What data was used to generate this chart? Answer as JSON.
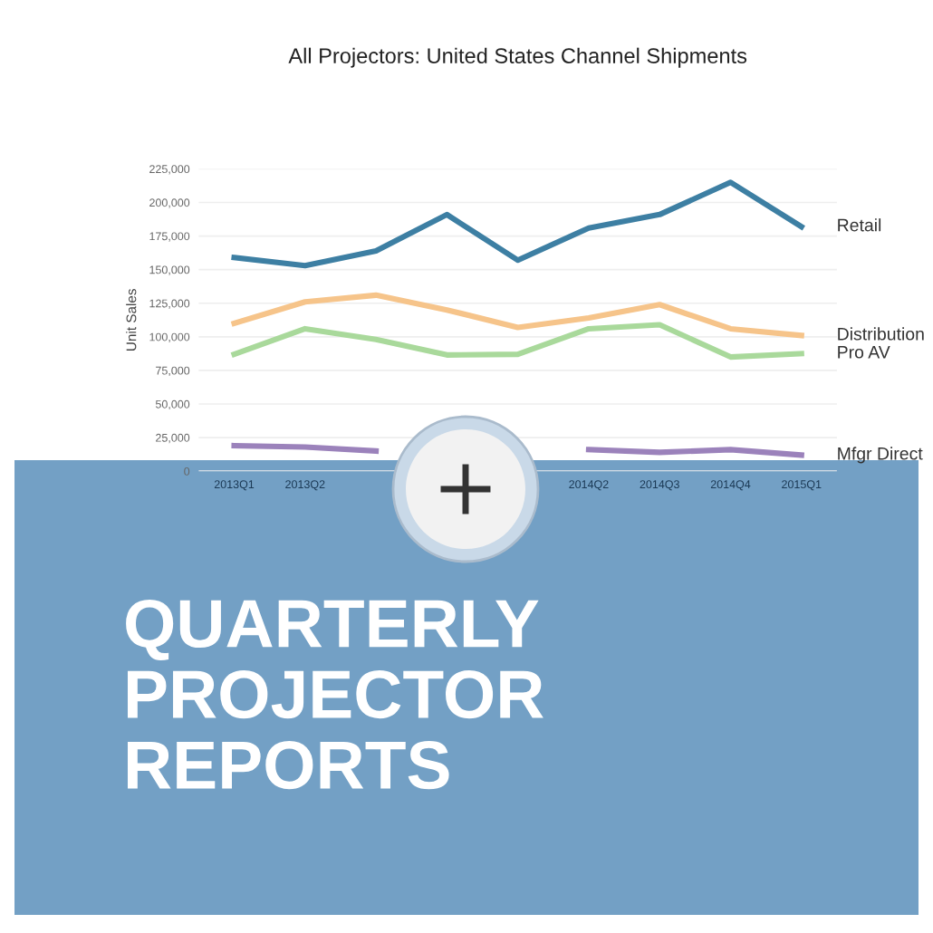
{
  "chart_data": {
    "type": "line",
    "title": "All Projectors: United States Channel Shipments",
    "ylabel": "Unit Sales",
    "categories": [
      "2013Q1",
      "2013Q2",
      null,
      null,
      null,
      "2014Q2",
      "2014Q3",
      "2014Q4",
      "2015Q1"
    ],
    "series": [
      {
        "name": "Retail",
        "color": "#3d7fa3",
        "values": [
          159000,
          153000,
          164000,
          191000,
          157000,
          181000,
          191000,
          215000,
          182000
        ]
      },
      {
        "name": "Distribution",
        "color": "#f6c48a",
        "values": [
          110000,
          126000,
          131000,
          120000,
          107000,
          114000,
          124000,
          106000,
          101000
        ]
      },
      {
        "name": "Pro AV",
        "color": "#a9d99b",
        "values": [
          87000,
          106000,
          98000,
          86500,
          87000,
          106000,
          109000,
          85000,
          87500
        ]
      },
      {
        "name": "Mfgr Direct",
        "color": "#9b82bb",
        "values": [
          19000,
          18000,
          15000,
          null,
          null,
          16000,
          14000,
          16000,
          12000
        ]
      }
    ],
    "ylim": [
      0,
      225000
    ],
    "yticks": [
      {
        "value": 0,
        "label": "0"
      },
      {
        "value": 25000,
        "label": "25,000"
      },
      {
        "value": 50000,
        "label": "50,000"
      },
      {
        "value": 75000,
        "label": "75,000"
      },
      {
        "value": 100000,
        "label": "100,000"
      },
      {
        "value": 125000,
        "label": "125,000"
      },
      {
        "value": 150000,
        "label": "150,000"
      },
      {
        "value": 175000,
        "label": "175,000"
      },
      {
        "value": 200000,
        "label": "200,000"
      },
      {
        "value": 225000,
        "label": "225,000"
      }
    ],
    "grid": "y",
    "legend": false,
    "marker": "none",
    "line_style": "solid",
    "annotations": [
      "QUARTERLY\nPROJECTOR\nREPORTS"
    ]
  }
}
